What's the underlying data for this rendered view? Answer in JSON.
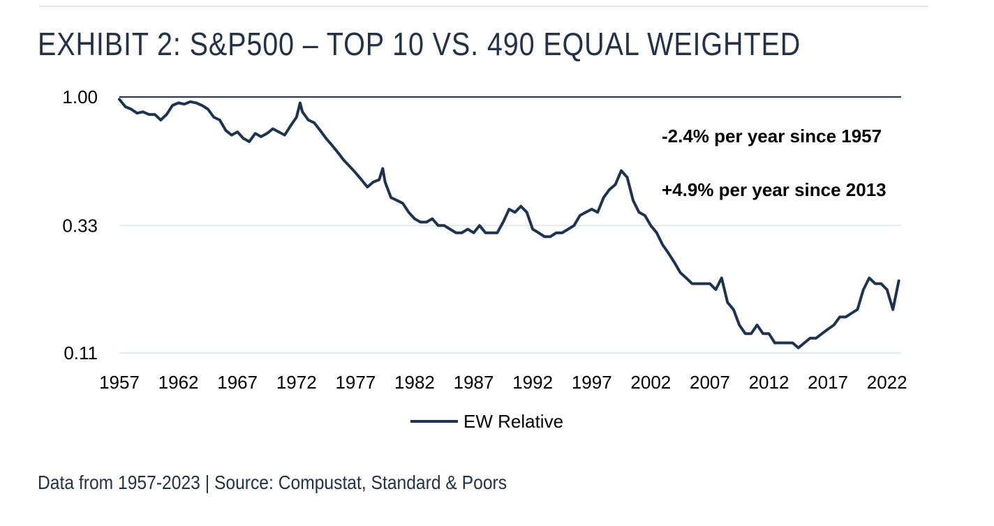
{
  "header": {
    "title": "EXHIBIT 2: S&P500 – TOP 10 VS. 490 EQUAL WEIGHTED"
  },
  "footer": {
    "source": "Data from 1957-2023 | Source: Compustat, Standard & Poors"
  },
  "colors": {
    "series": "#1c3450",
    "grid": "#d9e3ec",
    "reference_line": "#1c3450",
    "text": "#223249"
  },
  "chart_data": {
    "type": "line",
    "title": "EXHIBIT 2: S&P500 – TOP 10 VS. 490 EQUAL WEIGHTED",
    "xlabel": "",
    "ylabel": "",
    "y_scale": "log",
    "xlim": [
      1957,
      2023.2
    ],
    "ylim": [
      0.11,
      1.0
    ],
    "x_ticks": [
      1957,
      1962,
      1967,
      1972,
      1977,
      1982,
      1987,
      1992,
      1997,
      2002,
      2007,
      2012,
      2017,
      2022
    ],
    "x_tick_labels": [
      "1957",
      "1962",
      "1967",
      "1972",
      "1977",
      "1982",
      "1987",
      "1992",
      "1997",
      "2002",
      "2007",
      "2012",
      "2017",
      "2022"
    ],
    "y_ticks": [
      1.0,
      0.33,
      0.11
    ],
    "y_tick_labels": [
      "1.00",
      "0.33",
      "0.11"
    ],
    "reference_line": 1.0,
    "grid": true,
    "legend": {
      "position": "bottom-center",
      "entries": [
        "EW Relative"
      ]
    },
    "annotations": [
      "-2.4% per year since 1957",
      "+4.9% per year since 2013"
    ],
    "series": [
      {
        "name": "EW Relative",
        "x": [
          1957.0,
          1957.5,
          1958.0,
          1958.5,
          1959.0,
          1959.5,
          1960.0,
          1960.5,
          1961.0,
          1961.5,
          1962.0,
          1962.5,
          1963.0,
          1963.5,
          1964.0,
          1964.5,
          1965.0,
          1965.5,
          1966.0,
          1966.5,
          1967.0,
          1967.5,
          1968.0,
          1968.5,
          1969.0,
          1969.5,
          1970.0,
          1970.5,
          1971.0,
          1971.5,
          1972.0,
          1972.3,
          1972.5,
          1973.0,
          1973.5,
          1974.0,
          1974.5,
          1975.0,
          1975.5,
          1976.0,
          1976.5,
          1977.0,
          1977.5,
          1978.0,
          1978.5,
          1979.0,
          1979.3,
          1979.5,
          1980.0,
          1980.5,
          1981.0,
          1981.5,
          1982.0,
          1982.5,
          1983.0,
          1983.5,
          1984.0,
          1984.5,
          1985.0,
          1985.5,
          1986.0,
          1986.5,
          1987.0,
          1987.5,
          1988.0,
          1988.5,
          1989.0,
          1989.5,
          1990.0,
          1990.5,
          1991.0,
          1991.5,
          1992.0,
          1992.5,
          1993.0,
          1993.5,
          1994.0,
          1994.5,
          1995.0,
          1995.5,
          1996.0,
          1996.5,
          1997.0,
          1997.5,
          1998.0,
          1998.5,
          1999.0,
          1999.5,
          2000.0,
          2000.5,
          2001.0,
          2001.5,
          2002.0,
          2002.5,
          2003.0,
          2003.5,
          2004.0,
          2004.5,
          2005.0,
          2005.5,
          2006.0,
          2006.5,
          2007.0,
          2007.5,
          2008.0,
          2008.5,
          2009.0,
          2009.5,
          2010.0,
          2010.5,
          2011.0,
          2011.5,
          2012.0,
          2012.5,
          2013.0,
          2013.5,
          2014.0,
          2014.5,
          2015.0,
          2015.5,
          2016.0,
          2016.5,
          2017.0,
          2017.5,
          2018.0,
          2018.5,
          2019.0,
          2019.5,
          2020.0,
          2020.5,
          2021.0,
          2021.5,
          2022.0,
          2022.5,
          2023.0
        ],
        "values": [
          0.98,
          0.92,
          0.9,
          0.87,
          0.88,
          0.86,
          0.86,
          0.82,
          0.86,
          0.93,
          0.95,
          0.94,
          0.96,
          0.95,
          0.93,
          0.9,
          0.84,
          0.82,
          0.75,
          0.72,
          0.74,
          0.7,
          0.68,
          0.73,
          0.71,
          0.73,
          0.76,
          0.74,
          0.72,
          0.78,
          0.84,
          0.95,
          0.88,
          0.82,
          0.8,
          0.75,
          0.7,
          0.66,
          0.62,
          0.58,
          0.55,
          0.52,
          0.49,
          0.46,
          0.48,
          0.49,
          0.54,
          0.48,
          0.42,
          0.41,
          0.4,
          0.37,
          0.35,
          0.34,
          0.34,
          0.35,
          0.33,
          0.33,
          0.32,
          0.31,
          0.31,
          0.32,
          0.31,
          0.33,
          0.31,
          0.31,
          0.31,
          0.34,
          0.38,
          0.37,
          0.39,
          0.37,
          0.32,
          0.31,
          0.3,
          0.3,
          0.31,
          0.31,
          0.32,
          0.33,
          0.36,
          0.37,
          0.38,
          0.37,
          0.42,
          0.45,
          0.47,
          0.53,
          0.5,
          0.41,
          0.37,
          0.36,
          0.33,
          0.31,
          0.28,
          0.26,
          0.24,
          0.22,
          0.21,
          0.2,
          0.2,
          0.2,
          0.2,
          0.19,
          0.21,
          0.17,
          0.16,
          0.14,
          0.13,
          0.13,
          0.14,
          0.13,
          0.13,
          0.12,
          0.12,
          0.12,
          0.12,
          0.115,
          0.12,
          0.125,
          0.125,
          0.13,
          0.135,
          0.14,
          0.15,
          0.15,
          0.155,
          0.16,
          0.19,
          0.21,
          0.2,
          0.2,
          0.19,
          0.16,
          0.205
        ]
      }
    ]
  }
}
